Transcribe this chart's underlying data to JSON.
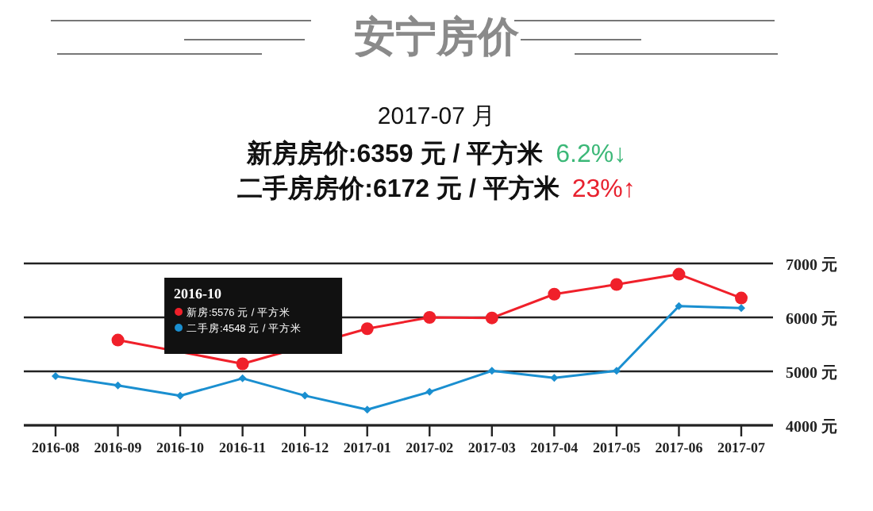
{
  "chart_data": {
    "type": "line",
    "title": "安宁房价",
    "subtitle": "2017-07 月",
    "categories": [
      "2016-08",
      "2016-09",
      "2016-10",
      "2016-11",
      "2016-12",
      "2017-01",
      "2017-02",
      "2017-03",
      "2017-04",
      "2017-05",
      "2017-06",
      "2017-07"
    ],
    "series": [
      {
        "name": "新房",
        "color": "#f0202a",
        "marker": "circle",
        "values": [
          null,
          5580,
          null,
          5140,
          null,
          5790,
          6000,
          5990,
          6430,
          6610,
          6800,
          6359
        ]
      },
      {
        "name": "二手房",
        "color": "#1a8fd0",
        "marker": "diamond",
        "values": [
          4910,
          4740,
          4548,
          4870,
          4550,
          4290,
          4620,
          5010,
          4880,
          5010,
          6210,
          6172
        ]
      }
    ],
    "ylim": [
      4000,
      7000
    ],
    "yticks": [
      {
        "value": 4000,
        "label": "4000 元"
      },
      {
        "value": 5000,
        "label": "5000 元"
      },
      {
        "value": 6000,
        "label": "6000 元"
      },
      {
        "value": 7000,
        "label": "7000 元"
      }
    ],
    "grid": "y",
    "line_style": "solid",
    "legend": "top left",
    "annotations": [
      "新房房价:6359 元 / 平方米",
      "6.2%↓",
      "二手房房价:6172 元 / 平方米",
      "23%↑",
      "2016-10",
      ":5576 元 / 平方米",
      ":4548 元 / 平方米"
    ]
  }
}
